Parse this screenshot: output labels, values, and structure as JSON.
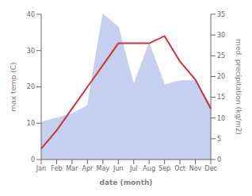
{
  "chart_data": {
    "type": "combo",
    "categories": [
      "Jan",
      "Feb",
      "Mar",
      "Apr",
      "May",
      "Jun",
      "Jul",
      "Aug",
      "Sep",
      "Oct",
      "Nov",
      "Dec"
    ],
    "xlabel": "date (month)",
    "ylabel": "max temp (C)",
    "y2label": "med. precipitation (kg/m2)",
    "ylim": [
      0,
      40
    ],
    "yticks": [
      0,
      10,
      20,
      30,
      40
    ],
    "y2lim": [
      0,
      35
    ],
    "y2ticks": [
      0,
      5,
      10,
      15,
      20,
      25,
      30,
      35
    ],
    "grid": false,
    "series": [
      {
        "type": "area",
        "axis": "y2",
        "color": "#c5cff0",
        "values": [
          9,
          10,
          11,
          13,
          35,
          32,
          18,
          28,
          18,
          19,
          19,
          13
        ]
      },
      {
        "type": "line",
        "axis": "y",
        "color": "#cc3333",
        "values": [
          3,
          8,
          14,
          20,
          26,
          32,
          32,
          32,
          34,
          27,
          22,
          14
        ]
      }
    ]
  }
}
